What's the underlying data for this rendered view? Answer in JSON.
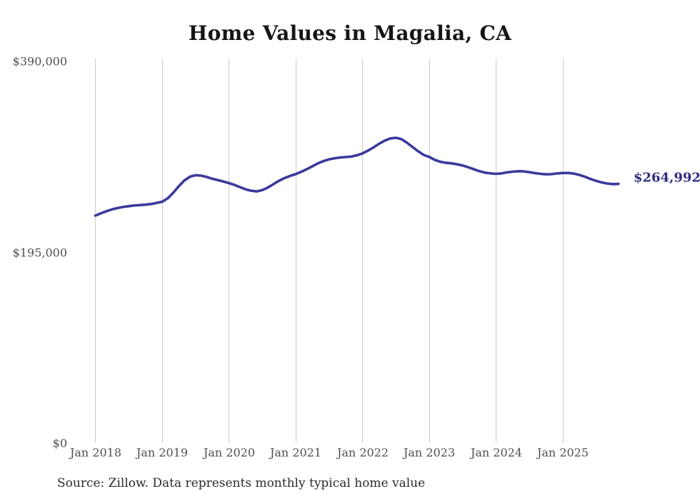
{
  "chart": {
    "title": "Home Values in Magalia, CA",
    "source_note": "Source: Zillow. Data represents monthly typical home value",
    "end_label": "$264,992",
    "y_axis": {
      "ticks": [
        {
          "label": "$390,000",
          "value": 390000
        },
        {
          "label": "$195,000",
          "value": 195000
        },
        {
          "label": "$0",
          "value": 0
        }
      ]
    },
    "x_axis": {
      "ticks": [
        "Jan 2018",
        "Jan 2019",
        "Jan 2020",
        "Jan 2021",
        "Jan 2022",
        "Jan 2023",
        "Jan 2024",
        "Jan 2025"
      ]
    },
    "colors": {
      "line": "#3b3a9c",
      "end_label": "#302d85",
      "gridline": "#cccccc",
      "axis_text": "#4f4f4f",
      "title_text": "#151515",
      "source_text": "#2b2b2b",
      "background": "#ffffff"
    }
  },
  "chart_data": {
    "type": "line",
    "title": "Home Values in Magalia, CA",
    "xlabel": "",
    "ylabel": "",
    "ylim": [
      0,
      390000
    ],
    "y_tick_values": [
      0,
      195000,
      390000
    ],
    "x_tick_labels": [
      "Jan 2018",
      "Jan 2019",
      "Jan 2020",
      "Jan 2021",
      "Jan 2022",
      "Jan 2023",
      "Jan 2024",
      "Jan 2025"
    ],
    "grid": "vertical-only",
    "legend_position": "none",
    "x_start_month": "2018-01",
    "frequency": "monthly",
    "series": [
      {
        "name": "Typical home value",
        "last_value": 264992,
        "values": [
          232700,
          235000,
          237200,
          239000,
          240400,
          241500,
          242300,
          243000,
          243400,
          243800,
          244500,
          245600,
          246800,
          250300,
          256000,
          262700,
          268500,
          272400,
          273900,
          273500,
          272100,
          270300,
          268900,
          267400,
          265800,
          263900,
          261700,
          259500,
          258000,
          257400,
          258700,
          261300,
          264700,
          268200,
          271000,
          273200,
          275000,
          277400,
          280000,
          283000,
          286000,
          288300,
          290100,
          291200,
          292000,
          292400,
          292900,
          294200,
          296100,
          299000,
          302300,
          306000,
          309200,
          311400,
          312100,
          310700,
          307000,
          302700,
          298300,
          294600,
          292500,
          289500,
          287500,
          286500,
          286000,
          285000,
          283800,
          282000,
          280000,
          278000,
          276500,
          275700,
          275300,
          275700,
          276800,
          277500,
          278000,
          277800,
          277000,
          276000,
          275300,
          274800,
          275000,
          275700,
          276200,
          276200,
          275500,
          274100,
          272200,
          270000,
          268100,
          266500,
          265400,
          264800,
          264992
        ]
      }
    ],
    "annotations": [
      {
        "text": "$264,992",
        "attach": "line-end"
      }
    ]
  }
}
